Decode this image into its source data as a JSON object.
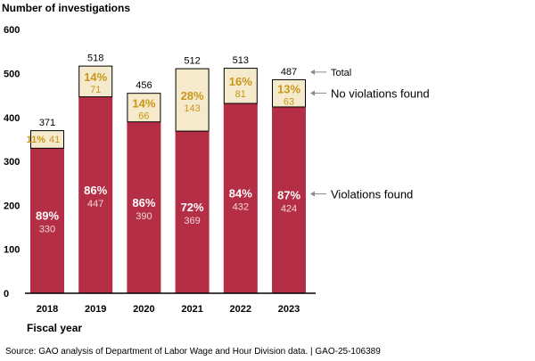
{
  "ylabel": "Number of investigations",
  "xlabel": "Fiscal year",
  "source": "Source: GAO analysis of Department of Labor Wage and Hour Division data.  |  GAO-25-106389",
  "colors": {
    "violations": "#b42e45",
    "no_violations": "#f5ebcc",
    "pct_no": "#c9961a"
  },
  "chart_data": {
    "type": "bar",
    "stacked": true,
    "categories": [
      "2018",
      "2019",
      "2020",
      "2021",
      "2022",
      "2023"
    ],
    "series": [
      {
        "name": "Violations found",
        "values": [
          330,
          447,
          390,
          369,
          432,
          424
        ],
        "percent_labels": [
          "89%",
          "86%",
          "86%",
          "72%",
          "84%",
          "87%"
        ]
      },
      {
        "name": "No violations found",
        "values": [
          41,
          71,
          66,
          143,
          81,
          63
        ],
        "percent_labels": [
          "11%",
          "14%",
          "14%",
          "28%",
          "16%",
          "13%"
        ]
      }
    ],
    "totals": [
      371,
      518,
      456,
      512,
      513,
      487
    ],
    "total_label": "Total",
    "yticks": [
      0,
      100,
      200,
      300,
      400,
      500,
      600
    ],
    "ylim": [
      0,
      600
    ],
    "grid": false
  }
}
